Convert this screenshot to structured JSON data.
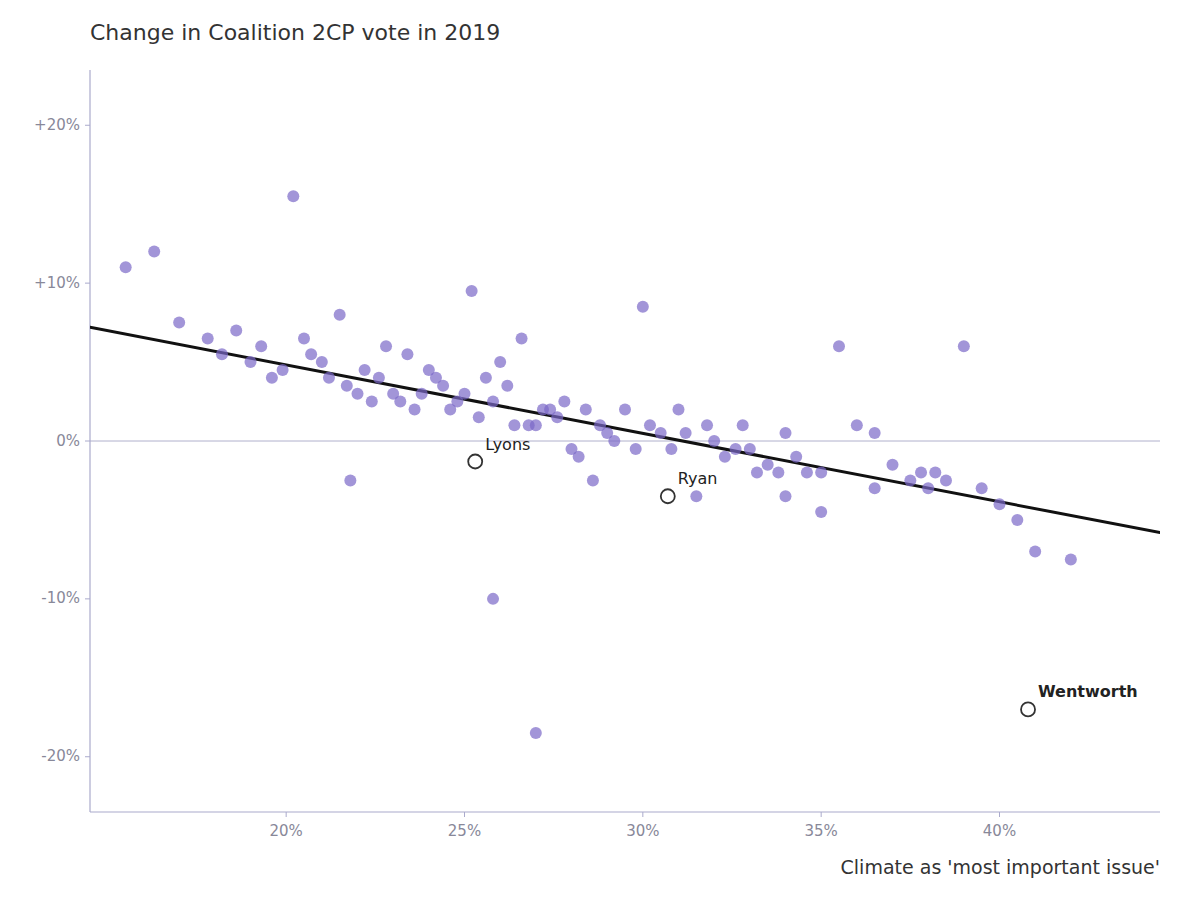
{
  "chart_data": {
    "type": "scatter",
    "title": "Change in Coalition 2CP vote in 2019",
    "x_label": "Climate as 'most important issue'",
    "xlim": [
      0.145,
      0.445
    ],
    "ylim": [
      -0.235,
      0.235
    ],
    "xticks": [
      {
        "value": 0.2,
        "label": "20%"
      },
      {
        "value": 0.25,
        "label": "25%"
      },
      {
        "value": 0.3,
        "label": "30%"
      },
      {
        "value": 0.35,
        "label": "35%"
      },
      {
        "value": 0.4,
        "label": "40%"
      }
    ],
    "yticks": [
      {
        "value": -0.2,
        "label": "-20%"
      },
      {
        "value": -0.1,
        "label": "-10%"
      },
      {
        "value": 0.0,
        "label": "0%"
      },
      {
        "value": 0.1,
        "label": "+10%"
      },
      {
        "value": 0.2,
        "label": "+20%"
      }
    ],
    "grid": false,
    "series": [
      {
        "type": "scatter",
        "color": "#7B68C8",
        "x": [
          0.155,
          0.163,
          0.17,
          0.178,
          0.182,
          0.186,
          0.19,
          0.193,
          0.196,
          0.199,
          0.202,
          0.205,
          0.207,
          0.21,
          0.212,
          0.215,
          0.217,
          0.22,
          0.222,
          0.224,
          0.226,
          0.228,
          0.23,
          0.232,
          0.234,
          0.236,
          0.238,
          0.24,
          0.242,
          0.244,
          0.246,
          0.248,
          0.25,
          0.252,
          0.254,
          0.256,
          0.258,
          0.26,
          0.262,
          0.264,
          0.266,
          0.268,
          0.27,
          0.272,
          0.274,
          0.276,
          0.278,
          0.28,
          0.282,
          0.284,
          0.286,
          0.288,
          0.29,
          0.292,
          0.295,
          0.298,
          0.3,
          0.302,
          0.305,
          0.308,
          0.31,
          0.312,
          0.315,
          0.318,
          0.32,
          0.323,
          0.326,
          0.328,
          0.33,
          0.332,
          0.335,
          0.338,
          0.34,
          0.343,
          0.346,
          0.35,
          0.355,
          0.36,
          0.365,
          0.37,
          0.375,
          0.378,
          0.382,
          0.385,
          0.39,
          0.395,
          0.4,
          0.405,
          0.41,
          0.42,
          0.38,
          0.365,
          0.34,
          0.35,
          0.258,
          0.27,
          0.218
        ],
        "values": [
          0.11,
          0.12,
          0.075,
          0.065,
          0.055,
          0.07,
          0.05,
          0.06,
          0.04,
          0.045,
          0.155,
          0.065,
          0.055,
          0.05,
          0.04,
          0.08,
          0.035,
          0.03,
          0.045,
          0.025,
          0.04,
          0.06,
          0.03,
          0.025,
          0.055,
          0.02,
          0.03,
          0.045,
          0.04,
          0.035,
          0.02,
          0.025,
          0.03,
          0.095,
          0.015,
          0.04,
          0.025,
          0.05,
          0.035,
          0.01,
          0.065,
          0.01,
          0.01,
          0.02,
          0.02,
          0.015,
          0.025,
          -0.005,
          -0.01,
          0.02,
          -0.025,
          0.01,
          0.005,
          0.0,
          0.02,
          -0.005,
          0.085,
          0.01,
          0.005,
          -0.005,
          0.02,
          0.005,
          -0.035,
          0.01,
          0.0,
          -0.01,
          -0.005,
          0.01,
          -0.005,
          -0.02,
          -0.015,
          -0.02,
          0.005,
          -0.01,
          -0.02,
          -0.02,
          0.06,
          0.01,
          0.005,
          -0.015,
          -0.025,
          -0.02,
          -0.02,
          -0.025,
          0.06,
          -0.03,
          -0.04,
          -0.05,
          -0.07,
          -0.075,
          -0.03,
          -0.03,
          -0.035,
          -0.045,
          -0.1,
          -0.185,
          -0.025
        ]
      },
      {
        "type": "line",
        "color": "#111111",
        "x": [
          0.145,
          0.445
        ],
        "values": [
          0.072,
          -0.058
        ]
      }
    ],
    "annotations": [
      {
        "x": 0.253,
        "y": -0.013,
        "label": "Lyons",
        "bold": false
      },
      {
        "x": 0.307,
        "y": -0.035,
        "label": "Ryan",
        "bold": false
      },
      {
        "x": 0.408,
        "y": -0.17,
        "label": "Wentworth",
        "bold": true
      }
    ]
  }
}
